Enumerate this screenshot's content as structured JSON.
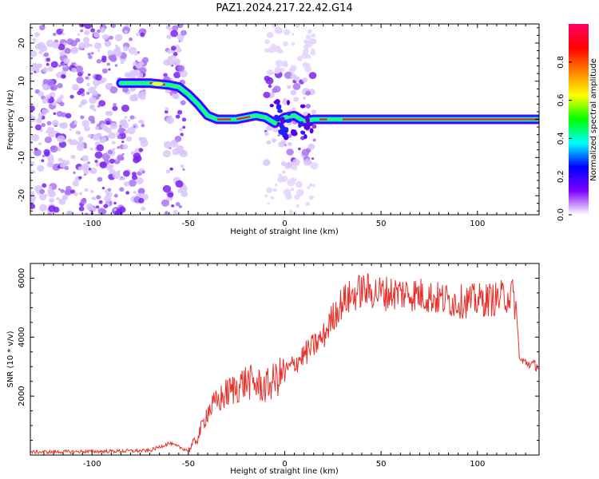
{
  "figure": {
    "title": "PAZ1.2024.217.22.42.G14"
  },
  "chart_data": [
    {
      "type": "heatmap",
      "title": "PAZ1.2024.217.22.42.G14",
      "xlabel": "Height of straight line (km)",
      "ylabel": "Frequency (Hz)",
      "xlim": [
        -132,
        132
      ],
      "ylim": [
        -25,
        25
      ],
      "x_ticks": [
        -100,
        -50,
        0,
        50,
        100
      ],
      "y_ticks": [
        -20,
        -10,
        0,
        10,
        20
      ],
      "colorbar": {
        "label": "Normalized spectral amplitude",
        "range": [
          0,
          1
        ],
        "ticks": [
          "0.0",
          "0.2",
          "0.4",
          "0.6",
          "0.8"
        ],
        "colormap": [
          "#ffffff",
          "#7f00ff",
          "#0000ff",
          "#00ffff",
          "#00ff00",
          "#ffff00",
          "#ff8000",
          "#ff0000",
          "#ff0066"
        ]
      },
      "doppler_track": {
        "x": [
          -85,
          -70,
          -60,
          -55,
          -50,
          -45,
          -40,
          -35,
          -25,
          -20,
          -15,
          -10,
          -5,
          0,
          5,
          10,
          15,
          20,
          30,
          50,
          80,
          100,
          132
        ],
        "y": [
          9.5,
          9.5,
          9,
          8.5,
          6.5,
          4,
          1,
          0,
          0,
          0.5,
          1,
          0.5,
          -1,
          0.5,
          1,
          -0.5,
          0,
          0,
          0,
          0,
          0,
          0,
          0
        ]
      },
      "grid": false
    },
    {
      "type": "line",
      "xlabel": "Height of straight line (km)",
      "ylabel": "SNR (10 * v/v)",
      "xlim": [
        -132,
        132
      ],
      "ylim": [
        0,
        6500
      ],
      "x_ticks": [
        -100,
        -50,
        0,
        50,
        100
      ],
      "y_ticks": [
        2000,
        4000,
        6000
      ],
      "series_color": "#e8302a",
      "trend": {
        "x": [
          -132,
          -100,
          -70,
          -60,
          -50,
          -45,
          -40,
          -30,
          -20,
          -10,
          0,
          10,
          20,
          25,
          30,
          40,
          50,
          60,
          70,
          80,
          90,
          100,
          110,
          118,
          120,
          122,
          132
        ],
        "y": [
          100,
          120,
          150,
          400,
          150,
          600,
          1500,
          2100,
          2500,
          2300,
          2800,
          3400,
          4000,
          4700,
          5200,
          5600,
          5500,
          5500,
          5450,
          5300,
          5200,
          5250,
          5300,
          5450,
          5000,
          3200,
          3000
        ]
      },
      "grid": false
    }
  ]
}
